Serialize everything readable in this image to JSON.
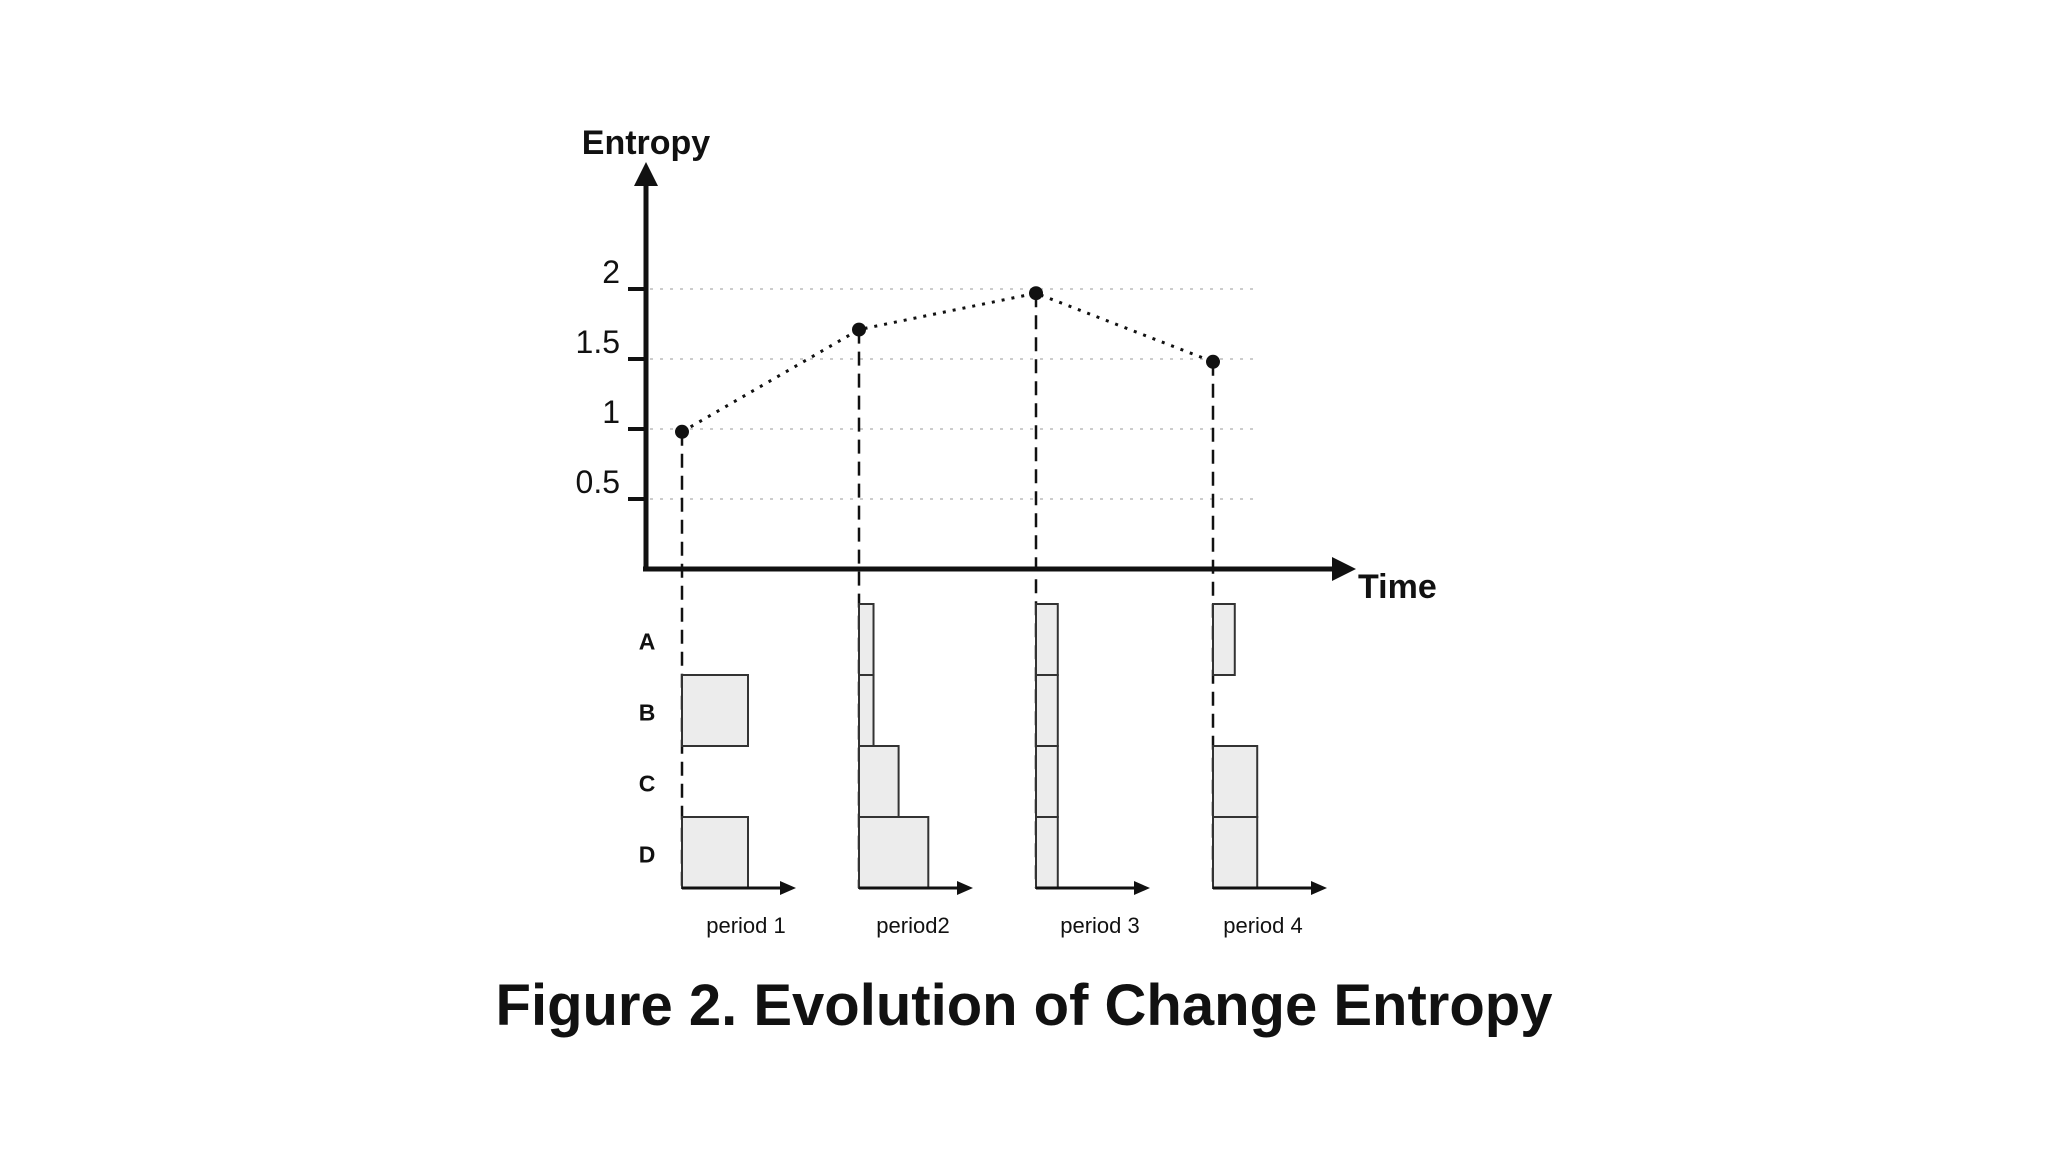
{
  "caption": "Figure 2. Evolution of Change Entropy",
  "chart_data": [
    {
      "type": "line",
      "ylabel": "Entropy",
      "xlabel": "Time",
      "y_ticks": [
        "2",
        "1.5",
        "1",
        "0.5"
      ],
      "y_tick_values": [
        2,
        1.5,
        1,
        0.5
      ],
      "ylim": [
        0,
        2.4
      ],
      "grid": true,
      "x": [
        "period 1",
        "period2",
        "period 3",
        "period 4"
      ],
      "series": [
        {
          "values": [
            0.98,
            1.71,
            1.97,
            1.48
          ]
        }
      ],
      "colors": {
        "line": "#111111",
        "grid": "#cccccc"
      }
    },
    {
      "type": "bar",
      "categories": [
        "A",
        "B",
        "C",
        "D"
      ],
      "panels": [
        {
          "label": "period 1",
          "values": [
            0,
            1,
            0,
            1
          ]
        },
        {
          "label": "period2",
          "values": [
            0.22,
            0.22,
            0.6,
            1.05
          ]
        },
        {
          "label": "period 3",
          "values": [
            0.33,
            0.33,
            0.33,
            0.33
          ]
        },
        {
          "label": "period 4",
          "values": [
            0.33,
            0,
            0.67,
            0.67
          ]
        }
      ],
      "colors": {
        "bar_fill": "#ececec",
        "bar_stroke": "#333333"
      }
    }
  ]
}
